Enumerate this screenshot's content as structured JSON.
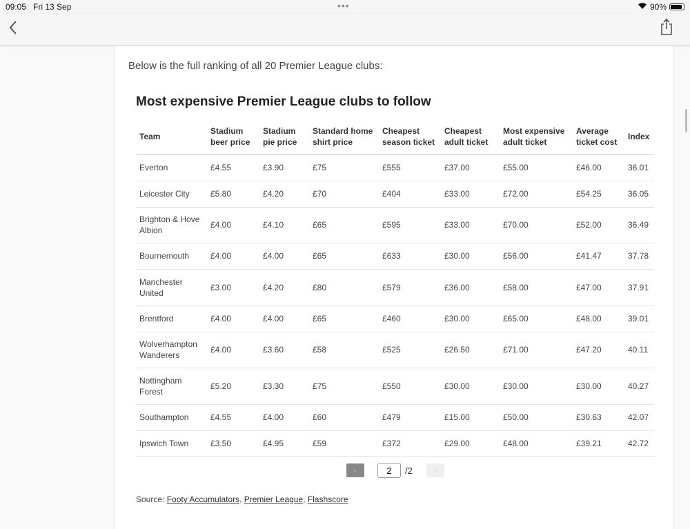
{
  "status": {
    "time": "09:05",
    "date": "Fri 13 Sep",
    "battery": "90%",
    "battery_level": 0.9
  },
  "nav": {
    "back_icon": "chevron-left-icon",
    "share_icon": "share-icon"
  },
  "article": {
    "intro": "Below is the full ranking of all 20 Premier League clubs:",
    "table_title": "Most expensive Premier League clubs to follow",
    "columns": [
      "Team",
      "Stadium beer price",
      "Stadium pie price",
      "Standard home shirt price",
      "Cheapest season ticket",
      "Cheapest adult ticket",
      "Most expensive adult ticket",
      "Average ticket cost",
      "Index"
    ],
    "rows": [
      [
        "Everton",
        "£4.55",
        "£3.90",
        "£75",
        "£555",
        "£37.00",
        "£55.00",
        "£46.00",
        "36.01"
      ],
      [
        "Leicester City",
        "£5.80",
        "£4.20",
        "£70",
        "£404",
        "£33.00",
        "£72.00",
        "£54.25",
        "36.05"
      ],
      [
        "Brighton & Hove Albion",
        "£4.00",
        "£4.10",
        "£65",
        "£595",
        "£33.00",
        "£70.00",
        "£52.00",
        "36.49"
      ],
      [
        "Bournemouth",
        "£4.00",
        "£4.00",
        "£65",
        "£633",
        "£30.00",
        "£56.00",
        "£41.47",
        "37.78"
      ],
      [
        "Manchester United",
        "£3.00",
        "£4.20",
        "£80",
        "£579",
        "£36.00",
        "£58.00",
        "£47.00",
        "37.91"
      ],
      [
        "Brentford",
        "£4.00",
        "£4.00",
        "£65",
        "£460",
        "£30.00",
        "£65.00",
        "£48.00",
        "39.01"
      ],
      [
        "Wolverhampton Wanderers",
        "£4.00",
        "£3.60",
        "£58",
        "£525",
        "£26.50",
        "£71.00",
        "£47.20",
        "40.11"
      ],
      [
        "Nottingham Forest",
        "£5.20",
        "£3.30",
        "£75",
        "£550",
        "£30.00",
        "£30.00",
        "£30.00",
        "40.27"
      ],
      [
        "Southampton",
        "£4.55",
        "£4.00",
        "£60",
        "£479",
        "£15.00",
        "£50.00",
        "£30.63",
        "42.07"
      ],
      [
        "Ipswich Town",
        "£3.50",
        "£4.95",
        "£59",
        "£372",
        "£29.00",
        "£48.00",
        "£39.21",
        "42.72"
      ]
    ],
    "pagination": {
      "prev": "‹",
      "current": "2",
      "total": "/2",
      "next": "›"
    },
    "source": {
      "label": "Source:",
      "links": [
        "Footy Accumulators",
        "Premier League",
        "Flashscore"
      ]
    }
  }
}
